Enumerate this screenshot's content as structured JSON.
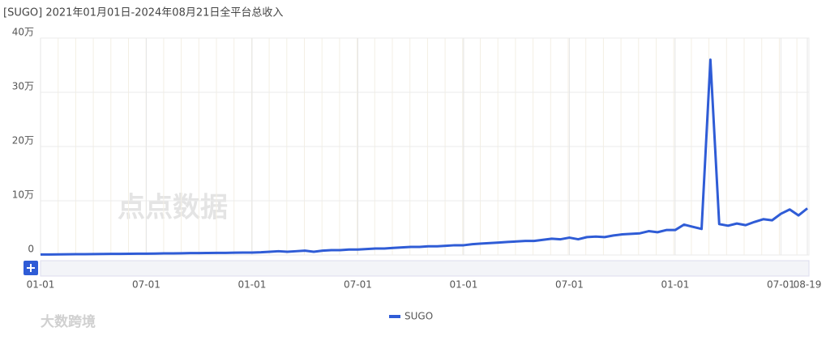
{
  "chart_data": {
    "type": "line",
    "title": "[SUGO]  2021年01月01日-2024年08月21日全平台总收入",
    "watermark": "点点数据",
    "footer_watermark": "大数跨境",
    "categories": [
      "01-01",
      null,
      null,
      null,
      null,
      null,
      null,
      null,
      null,
      null,
      null,
      null,
      "07-01",
      null,
      null,
      null,
      null,
      null,
      null,
      null,
      null,
      null,
      null,
      null,
      "01-01",
      null,
      null,
      null,
      null,
      null,
      null,
      null,
      null,
      null,
      null,
      null,
      "07-01",
      null,
      null,
      null,
      null,
      null,
      null,
      null,
      null,
      null,
      null,
      null,
      "01-01",
      null,
      null,
      null,
      null,
      null,
      null,
      null,
      null,
      null,
      null,
      null,
      "07-01",
      null,
      null,
      null,
      null,
      null,
      null,
      null,
      null,
      null,
      null,
      null,
      "01-01",
      null,
      null,
      null,
      null,
      null,
      null,
      null,
      null,
      null,
      null,
      null,
      "07-01",
      null,
      null,
      "08-19"
    ],
    "series": [
      {
        "name": "SUGO",
        "color": "#2f5cd6",
        "values": [
          0.1,
          0.1,
          0.12,
          0.13,
          0.15,
          0.15,
          0.17,
          0.18,
          0.2,
          0.2,
          0.22,
          0.25,
          0.25,
          0.27,
          0.3,
          0.3,
          0.32,
          0.35,
          0.35,
          0.38,
          0.4,
          0.4,
          0.42,
          0.45,
          0.45,
          0.5,
          0.6,
          0.7,
          0.6,
          0.7,
          0.8,
          0.6,
          0.8,
          0.9,
          0.9,
          1.0,
          1.0,
          1.1,
          1.2,
          1.2,
          1.3,
          1.4,
          1.5,
          1.5,
          1.6,
          1.6,
          1.7,
          1.8,
          1.8,
          2.0,
          2.1,
          2.2,
          2.3,
          2.4,
          2.5,
          2.6,
          2.6,
          2.8,
          3.0,
          2.9,
          3.2,
          2.9,
          3.3,
          3.4,
          3.3,
          3.6,
          3.8,
          3.9,
          4.0,
          4.4,
          4.2,
          4.6,
          4.6,
          5.6,
          5.2,
          4.8,
          36,
          5.7,
          5.4,
          5.8,
          5.5,
          6.1,
          6.6,
          6.4,
          7.6,
          8.4,
          7.3,
          8.6
        ]
      }
    ],
    "ylim": [
      0,
      40
    ],
    "yticks": [
      0,
      {
        "value": 10,
        "label": "10万"
      },
      {
        "value": 20,
        "label": "20万"
      },
      {
        "value": 30,
        "label": "30万"
      },
      {
        "value": 40,
        "label": "40万"
      }
    ],
    "grid": true
  }
}
